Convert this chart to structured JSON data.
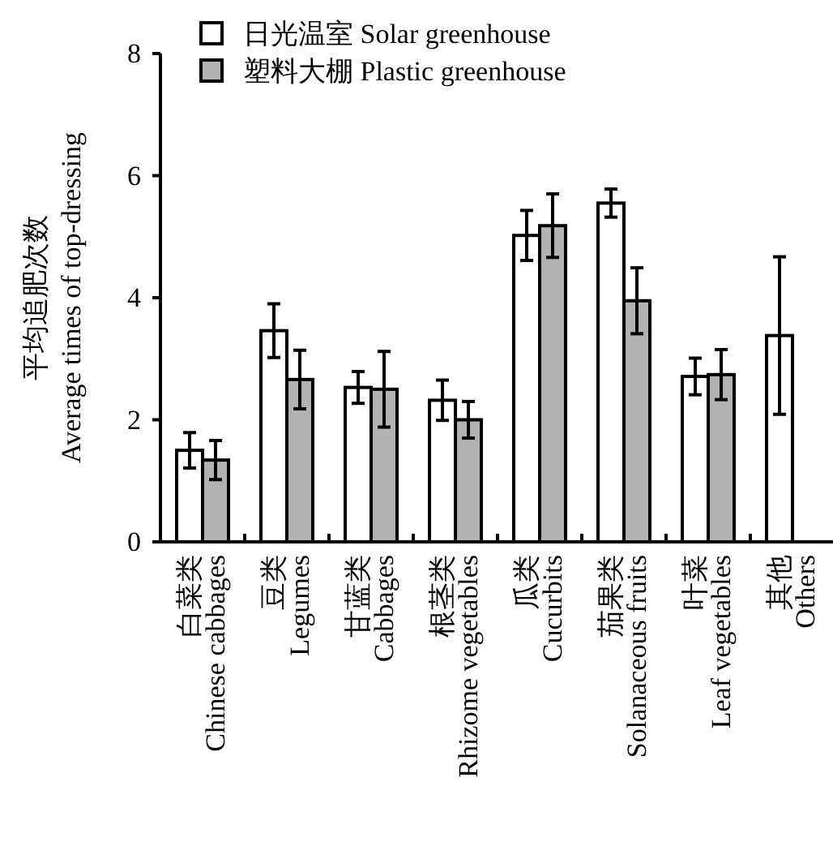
{
  "chart_data": {
    "type": "bar",
    "ylabel": "平均追肥次数 Average times of top-dressing",
    "categories": [
      "白菜类 Chinese cabbages",
      "豆类 Legumes",
      "甘蓝类 Cabbages",
      "根茎类 Rhizome vegetables",
      "瓜类 Cucurbits",
      "茄果类 Solanaceous fruits",
      "叶菜 Leaf vegetables",
      "其他 Others"
    ],
    "series": [
      {
        "name": "日光温室 Solar greenhouse",
        "color": "#ffffff",
        "values": [
          1.5,
          3.46,
          2.53,
          2.32,
          5.02,
          5.55,
          2.71,
          3.38
        ],
        "errors": [
          0.29,
          0.44,
          0.26,
          0.33,
          0.41,
          0.23,
          0.3,
          1.29
        ]
      },
      {
        "name": "塑料大棚 Plastic greenhouse",
        "color": "#b3b3b3",
        "values": [
          1.34,
          2.66,
          2.5,
          2.0,
          5.18,
          3.95,
          2.74,
          null
        ],
        "errors": [
          0.32,
          0.48,
          0.62,
          0.3,
          0.52,
          0.54,
          0.41,
          null
        ]
      }
    ],
    "ylim": [
      0,
      8
    ],
    "yticks": [
      0,
      2,
      4,
      6,
      8
    ],
    "legend": "top left",
    "grid": false
  }
}
